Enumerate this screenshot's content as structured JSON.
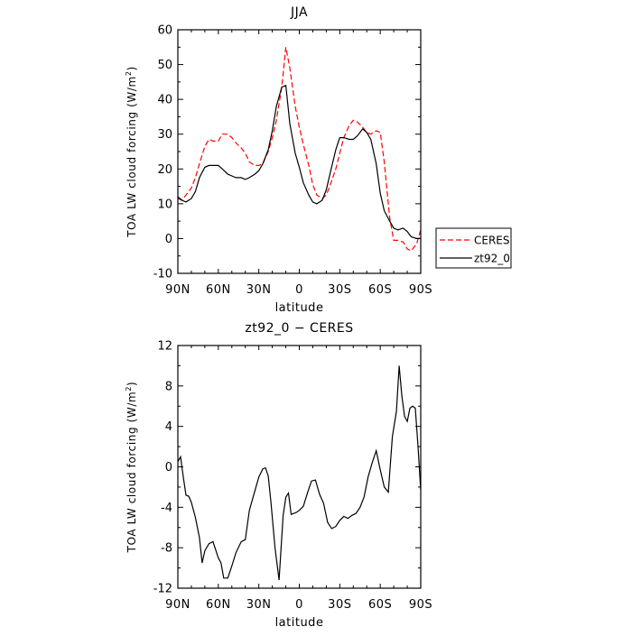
{
  "chart_data": [
    {
      "type": "line",
      "title": "JJA",
      "xlabel": "latitude",
      "ylabel": "TOA LW cloud forcing (W/m²)",
      "ylabel_unit_base": "TOA LW cloud forcing (W/m",
      "ylabel_unit_sup": "2",
      "ylabel_unit_end": ")",
      "xlim": [
        90,
        -90
      ],
      "ylim": [
        -10,
        60
      ],
      "xticks": [
        {
          "value": 90,
          "label": "90N"
        },
        {
          "value": 60,
          "label": "60N"
        },
        {
          "value": 30,
          "label": "30N"
        },
        {
          "value": 0,
          "label": "0"
        },
        {
          "value": -30,
          "label": "30S"
        },
        {
          "value": -60,
          "label": "60S"
        },
        {
          "value": -90,
          "label": "90S"
        }
      ],
      "yticks": [
        -10,
        0,
        10,
        20,
        30,
        40,
        50,
        60
      ],
      "legend_position": "right",
      "series": [
        {
          "name": "CERES",
          "color": "#ff0000",
          "dash": "dashed",
          "x": [
            90,
            87,
            84,
            80,
            77,
            74,
            70,
            67,
            64,
            60,
            57,
            53,
            50,
            47,
            43,
            40,
            37,
            33,
            30,
            27,
            23,
            20,
            17,
            13,
            10,
            7,
            3,
            0,
            -3,
            -7,
            -10,
            -13,
            -17,
            -20,
            -23,
            -27,
            -30,
            -33,
            -37,
            -40,
            -43,
            -47,
            -50,
            -53,
            -57,
            -60,
            -63,
            -67,
            -70,
            -73,
            -77,
            -80,
            -83,
            -87,
            -90
          ],
          "y": [
            11.5,
            11,
            12.5,
            14.5,
            17.5,
            21.5,
            26.5,
            28.5,
            28,
            28,
            30,
            30,
            29,
            27.5,
            26,
            24.5,
            22,
            21,
            21,
            21.5,
            25,
            29,
            34,
            43.5,
            55,
            49,
            38,
            32,
            27,
            21,
            15.5,
            12.5,
            11.5,
            12.5,
            15.5,
            20,
            24.5,
            29,
            32.5,
            34,
            33.5,
            32,
            30.5,
            30,
            31,
            30.5,
            22,
            6,
            -0.5,
            -0.5,
            -1,
            -3,
            -3.5,
            -1.5,
            2.5
          ]
        },
        {
          "name": "zt92_0",
          "color": "#000000",
          "dash": "solid",
          "x": [
            90,
            87,
            84,
            80,
            77,
            74,
            70,
            67,
            64,
            60,
            57,
            53,
            50,
            47,
            43,
            40,
            37,
            33,
            30,
            27,
            23,
            20,
            17,
            13,
            10,
            7,
            3,
            0,
            -3,
            -7,
            -10,
            -13,
            -17,
            -20,
            -23,
            -27,
            -30,
            -33,
            -37,
            -40,
            -43,
            -47,
            -50,
            -53,
            -57,
            -60,
            -63,
            -67,
            -70,
            -73,
            -77,
            -80,
            -83,
            -87,
            -90
          ],
          "y": [
            12,
            11,
            10.5,
            11.5,
            13.5,
            17.5,
            20.5,
            21,
            21,
            21,
            20,
            18.5,
            18,
            17.5,
            17.5,
            17,
            17.5,
            18.5,
            19.5,
            21.5,
            25.5,
            31,
            38,
            43.5,
            44,
            33,
            24.5,
            20.5,
            16,
            12.5,
            10.5,
            10,
            11,
            14,
            19,
            25.5,
            29,
            29,
            28.5,
            28.5,
            29.5,
            31.5,
            30.5,
            28.5,
            21.5,
            13,
            8,
            5,
            3,
            2.5,
            3,
            2,
            0.5,
            0,
            0
          ]
        }
      ]
    },
    {
      "type": "line",
      "title": "zt92_0 − CERES",
      "xlabel": "latitude",
      "ylabel": "TOA LW cloud forcing (W/m²)",
      "ylabel_unit_base": "TOA LW cloud forcing (W/m",
      "ylabel_unit_sup": "2",
      "ylabel_unit_end": ")",
      "xlim": [
        90,
        -90
      ],
      "ylim": [
        -12,
        12
      ],
      "xticks": [
        {
          "value": 90,
          "label": "90N"
        },
        {
          "value": 60,
          "label": "60N"
        },
        {
          "value": 30,
          "label": "30N"
        },
        {
          "value": 0,
          "label": "0"
        },
        {
          "value": -30,
          "label": "30S"
        },
        {
          "value": -60,
          "label": "60S"
        },
        {
          "value": -90,
          "label": "90S"
        }
      ],
      "yticks": [
        -12,
        -8,
        -4,
        0,
        4,
        8,
        12
      ],
      "series": [
        {
          "color": "#000000",
          "dash": "solid",
          "x": [
            90,
            88,
            86,
            84,
            82,
            80,
            77,
            74,
            72,
            70,
            67,
            64,
            60,
            58,
            56,
            53,
            50,
            47,
            43,
            40,
            37,
            33,
            30,
            27,
            25,
            23,
            21,
            18,
            15,
            12,
            10,
            8,
            6,
            4,
            2,
            0,
            -3,
            -6,
            -9,
            -12,
            -15,
            -18,
            -21,
            -24,
            -27,
            -30,
            -33,
            -36,
            -39,
            -42,
            -45,
            -48,
            -51,
            -54,
            -57,
            -60,
            -63,
            -66,
            -69,
            -72,
            -74,
            -76,
            -78,
            -80,
            -82,
            -84,
            -86,
            -88,
            -90
          ],
          "y": [
            0.5,
            1.0,
            -1.0,
            -2.8,
            -2.9,
            -3.5,
            -5.0,
            -7.0,
            -9.5,
            -8.3,
            -7.6,
            -7.4,
            -9.0,
            -9.5,
            -11.0,
            -11.0,
            -9.8,
            -8.5,
            -7.4,
            -7.2,
            -4.3,
            -2.4,
            -1.0,
            -0.2,
            -0.1,
            -0.9,
            -3.5,
            -8.0,
            -11.2,
            -4.8,
            -3.0,
            -2.6,
            -4.7,
            -4.6,
            -4.5,
            -4.3,
            -3.9,
            -2.6,
            -1.4,
            -1.3,
            -2.7,
            -3.6,
            -5.5,
            -6.1,
            -5.9,
            -5.3,
            -4.9,
            -5.1,
            -4.8,
            -4.6,
            -4.0,
            -3.0,
            -1.0,
            0.4,
            1.6,
            -0.3,
            -2.0,
            -2.5,
            3.0,
            5.5,
            10.0,
            7.0,
            5.0,
            4.5,
            5.8,
            6.0,
            5.8,
            2.0,
            -2.3
          ]
        }
      ]
    }
  ]
}
